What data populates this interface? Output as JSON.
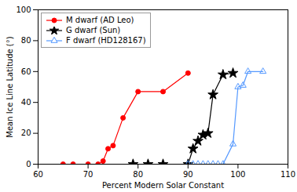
{
  "chart_data": {
    "type": "line",
    "xlabel": "Percent Modern Solar Constant",
    "ylabel": "Mean Ice Line Latitude (°)",
    "xlim": [
      60,
      110
    ],
    "ylim": [
      0,
      100
    ],
    "xticks": [
      60,
      70,
      80,
      90,
      100,
      110
    ],
    "yticks": [
      0,
      20,
      40,
      60,
      80,
      100
    ],
    "grid": false,
    "legend": "upper left",
    "series": [
      {
        "name": "M dwarf (AD Leo)",
        "color": "red",
        "marker": "circle",
        "line_style": "solid",
        "x": [
          65,
          67,
          70,
          72,
          73,
          74,
          75,
          77,
          80,
          85,
          90
        ],
        "values": [
          0,
          0,
          0,
          0,
          2,
          10,
          12,
          30,
          47,
          47,
          59
        ]
      },
      {
        "name": "G dwarf (Sun)",
        "color": "black",
        "marker": "star",
        "line_style": "solid",
        "x": [
          79,
          82,
          85,
          90,
          91,
          92,
          93,
          94,
          95,
          97,
          99
        ],
        "values": [
          0,
          0,
          0,
          0,
          10,
          15,
          19,
          20,
          45,
          58,
          59
        ]
      },
      {
        "name": "F dwarf (HD128167)",
        "color": "#5599ff",
        "marker": "triangle-open",
        "line_style": "solid",
        "x": [
          90,
          91,
          92,
          93,
          94,
          95,
          96,
          97,
          99,
          100,
          101,
          102,
          105
        ],
        "values": [
          0,
          0,
          0,
          0,
          0,
          0,
          0,
          0,
          13,
          50,
          51,
          60,
          60
        ]
      }
    ]
  }
}
